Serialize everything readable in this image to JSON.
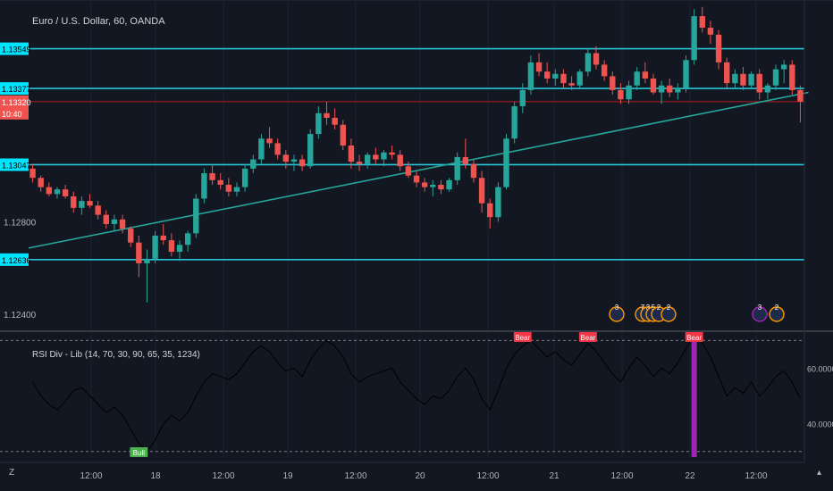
{
  "header": {
    "symbol_title": "Euro / U.S. Dollar, 60, OANDA",
    "indicator_title": "RSI Div - Lib (14, 70, 30, 90, 65, 35, 1234)"
  },
  "colors": {
    "background": "#131722",
    "bull": "#26a69a",
    "bear": "#ef5350",
    "level": "#26c6da",
    "price_line": "#b71c1c",
    "trend": "#26a69a",
    "rsi_line": "#000000",
    "div_bar": "#9c27b0"
  },
  "chart_data": [
    {
      "type": "candlestick",
      "title": "Euro / U.S. Dollar, 60, OANDA",
      "x_ticks": [
        "12:00",
        "18",
        "12:00",
        "19",
        "12:00",
        "20",
        "12:00",
        "21",
        "12:00",
        "22",
        "12:00"
      ],
      "y_ticks": [
        "1.13549",
        "1.13377",
        "1.13320",
        "1.13047",
        "1.12800",
        "1.12636",
        "1.12400"
      ],
      "price_tags": [
        {
          "label": "1.13549",
          "kind": "level"
        },
        {
          "label": "1.13377",
          "kind": "level"
        },
        {
          "label": "1.13320",
          "kind": "last"
        },
        {
          "label": "10:40",
          "kind": "countdown"
        },
        {
          "label": "1.13047",
          "kind": "level"
        },
        {
          "label": "1.12636",
          "kind": "level"
        }
      ],
      "horizontal_levels": [
        1.13549,
        1.13377,
        1.13047,
        1.12636
      ],
      "last_price": 1.1332,
      "trendline": [
        {
          "x": 0,
          "y": 1.12686
        },
        {
          "x": 95,
          "y": 1.1336
        }
      ],
      "ylim": [
        1.1233,
        1.1376
      ],
      "candles": [
        [
          1.1303,
          1.1305,
          1.1297,
          1.1299
        ],
        [
          1.1299,
          1.13,
          1.1293,
          1.1295
        ],
        [
          1.1295,
          1.1297,
          1.1291,
          1.1292
        ],
        [
          1.1292,
          1.1295,
          1.129,
          1.1294
        ],
        [
          1.1294,
          1.1296,
          1.129,
          1.1291
        ],
        [
          1.1291,
          1.1293,
          1.1284,
          1.1286
        ],
        [
          1.1286,
          1.1291,
          1.1283,
          1.1289
        ],
        [
          1.1289,
          1.1292,
          1.1286,
          1.1287
        ],
        [
          1.1287,
          1.1289,
          1.1281,
          1.1283
        ],
        [
          1.1283,
          1.1285,
          1.1277,
          1.1279
        ],
        [
          1.1279,
          1.1283,
          1.1276,
          1.1281
        ],
        [
          1.1281,
          1.1283,
          1.1275,
          1.1277
        ],
        [
          1.1277,
          1.1278,
          1.1269,
          1.1271
        ],
        [
          1.1271,
          1.1274,
          1.1256,
          1.1262
        ],
        [
          1.1262,
          1.1268,
          1.1245,
          1.1264
        ],
        [
          1.1264,
          1.1276,
          1.1262,
          1.1274
        ],
        [
          1.1274,
          1.1279,
          1.127,
          1.1272
        ],
        [
          1.1272,
          1.1275,
          1.1265,
          1.1267
        ],
        [
          1.1267,
          1.1272,
          1.1263,
          1.127
        ],
        [
          1.127,
          1.1276,
          1.1267,
          1.1275
        ],
        [
          1.1275,
          1.1292,
          1.1273,
          1.129
        ],
        [
          1.129,
          1.1303,
          1.1288,
          1.1301
        ],
        [
          1.1301,
          1.1305,
          1.1296,
          1.1298
        ],
        [
          1.1298,
          1.1301,
          1.1294,
          1.1296
        ],
        [
          1.1296,
          1.1299,
          1.1291,
          1.1293
        ],
        [
          1.1293,
          1.1297,
          1.1291,
          1.1295
        ],
        [
          1.1295,
          1.1305,
          1.1293,
          1.1303
        ],
        [
          1.1303,
          1.1309,
          1.1301,
          1.1307
        ],
        [
          1.1307,
          1.1318,
          1.1305,
          1.1316
        ],
        [
          1.1316,
          1.1321,
          1.1312,
          1.1314
        ],
        [
          1.1314,
          1.1316,
          1.1307,
          1.1309
        ],
        [
          1.1309,
          1.1311,
          1.1303,
          1.1306
        ],
        [
          1.1306,
          1.1309,
          1.1302,
          1.1307
        ],
        [
          1.1307,
          1.1309,
          1.1302,
          1.1304
        ],
        [
          1.1304,
          1.132,
          1.1303,
          1.1318
        ],
        [
          1.1318,
          1.133,
          1.1316,
          1.1327
        ],
        [
          1.1327,
          1.1332,
          1.1322,
          1.1325
        ],
        [
          1.1325,
          1.1329,
          1.132,
          1.1322
        ],
        [
          1.1322,
          1.1324,
          1.1311,
          1.1313
        ],
        [
          1.1313,
          1.1316,
          1.1303,
          1.1306
        ],
        [
          1.1306,
          1.1309,
          1.1302,
          1.1305
        ],
        [
          1.1305,
          1.131,
          1.1303,
          1.1309
        ],
        [
          1.1309,
          1.1312,
          1.1305,
          1.1307
        ],
        [
          1.1307,
          1.1311,
          1.1304,
          1.131
        ],
        [
          1.131,
          1.1313,
          1.1307,
          1.1309
        ],
        [
          1.1309,
          1.1311,
          1.1302,
          1.1304
        ],
        [
          1.1304,
          1.1306,
          1.1299,
          1.13
        ],
        [
          1.13,
          1.1302,
          1.1295,
          1.1297
        ],
        [
          1.1297,
          1.1299,
          1.1293,
          1.1295
        ],
        [
          1.1295,
          1.1298,
          1.1291,
          1.1296
        ],
        [
          1.1296,
          1.1298,
          1.1292,
          1.1294
        ],
        [
          1.1294,
          1.1299,
          1.1293,
          1.1298
        ],
        [
          1.1298,
          1.131,
          1.1296,
          1.1308
        ],
        [
          1.1308,
          1.1316,
          1.1303,
          1.1305
        ],
        [
          1.1305,
          1.1307,
          1.1297,
          1.1299
        ],
        [
          1.1299,
          1.1302,
          1.1284,
          1.1288
        ],
        [
          1.1288,
          1.129,
          1.1277,
          1.1282
        ],
        [
          1.1282,
          1.1297,
          1.128,
          1.1295
        ],
        [
          1.1295,
          1.1318,
          1.1294,
          1.1316
        ],
        [
          1.1316,
          1.1332,
          1.1314,
          1.133
        ],
        [
          1.133,
          1.134,
          1.1327,
          1.1337
        ],
        [
          1.1337,
          1.1352,
          1.1335,
          1.1349
        ],
        [
          1.1349,
          1.1353,
          1.1343,
          1.1345
        ],
        [
          1.1345,
          1.1349,
          1.134,
          1.1342
        ],
        [
          1.1342,
          1.1346,
          1.1339,
          1.1344
        ],
        [
          1.1344,
          1.1346,
          1.1338,
          1.134
        ],
        [
          1.134,
          1.1343,
          1.1337,
          1.1339
        ],
        [
          1.1339,
          1.1346,
          1.1338,
          1.1345
        ],
        [
          1.1345,
          1.1355,
          1.1343,
          1.1353
        ],
        [
          1.1353,
          1.1356,
          1.1346,
          1.1348
        ],
        [
          1.1348,
          1.135,
          1.1341,
          1.1343
        ],
        [
          1.1343,
          1.1345,
          1.1335,
          1.1337
        ],
        [
          1.1337,
          1.134,
          1.1331,
          1.1333
        ],
        [
          1.1333,
          1.1341,
          1.1331,
          1.1339
        ],
        [
          1.1339,
          1.1347,
          1.1337,
          1.1345
        ],
        [
          1.1345,
          1.1349,
          1.134,
          1.1342
        ],
        [
          1.1342,
          1.1344,
          1.1335,
          1.1336
        ],
        [
          1.1336,
          1.1341,
          1.1331,
          1.1339
        ],
        [
          1.1339,
          1.1342,
          1.1334,
          1.1336
        ],
        [
          1.1336,
          1.134,
          1.1333,
          1.1338
        ],
        [
          1.1338,
          1.1352,
          1.1336,
          1.135
        ],
        [
          1.135,
          1.1372,
          1.1348,
          1.1369
        ],
        [
          1.1369,
          1.1373,
          1.1362,
          1.1364
        ],
        [
          1.1364,
          1.1367,
          1.1357,
          1.1361
        ],
        [
          1.1361,
          1.1363,
          1.1346,
          1.1349
        ],
        [
          1.1349,
          1.1351,
          1.1338,
          1.134
        ],
        [
          1.134,
          1.1346,
          1.1338,
          1.1344
        ],
        [
          1.1344,
          1.1347,
          1.1337,
          1.1339
        ],
        [
          1.1339,
          1.1345,
          1.1338,
          1.1344
        ],
        [
          1.1344,
          1.1346,
          1.1333,
          1.1336
        ],
        [
          1.1336,
          1.134,
          1.1333,
          1.1339
        ],
        [
          1.1339,
          1.1348,
          1.1337,
          1.1346
        ],
        [
          1.1346,
          1.135,
          1.134,
          1.1348
        ],
        [
          1.1348,
          1.135,
          1.1335,
          1.1337
        ],
        [
          1.1337,
          1.1339,
          1.1323,
          1.1332
        ]
      ]
    },
    {
      "type": "line",
      "title": "RSI Div - Lib (14, 70, 30, 90, 65, 35, 1234)",
      "y_ticks": [
        "60.0000",
        "40.0000"
      ],
      "ylim": [
        28,
        73
      ],
      "reference_lines": [
        70,
        30
      ],
      "values": [
        55,
        50,
        47,
        45,
        48,
        52,
        53,
        50,
        47,
        44,
        46,
        43,
        38,
        33,
        30,
        34,
        40,
        43,
        41,
        44,
        50,
        55,
        58,
        57,
        56,
        58,
        62,
        66,
        68,
        66,
        62,
        59,
        60,
        57,
        63,
        67,
        70,
        68,
        64,
        58,
        55,
        57,
        58,
        59,
        60,
        55,
        52,
        49,
        47,
        50,
        49,
        52,
        57,
        60,
        56,
        49,
        45,
        52,
        60,
        65,
        68,
        70,
        67,
        64,
        66,
        63,
        61,
        65,
        69,
        66,
        62,
        58,
        55,
        60,
        64,
        61,
        57,
        60,
        58,
        62,
        67,
        72,
        69,
        64,
        57,
        50,
        53,
        51,
        55,
        50,
        53,
        57,
        59,
        55,
        49
      ],
      "signals": [
        {
          "label": "Bear",
          "index": 60
        },
        {
          "label": "Bear",
          "index": 68
        },
        {
          "label": "Bear",
          "index": 81
        },
        {
          "label": "Bull",
          "index": 13
        }
      ],
      "divergence_bar_index": 81
    }
  ],
  "calendar_events": [
    "3",
    "7",
    "3",
    "5",
    "2",
    "2",
    "3",
    "2"
  ]
}
